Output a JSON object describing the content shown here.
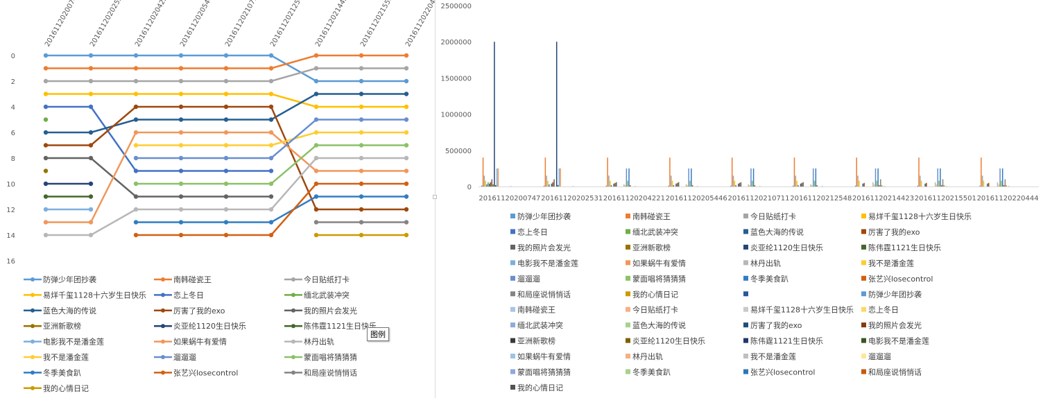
{
  "tooltip": "图例",
  "chart_data": [
    {
      "type": "line",
      "categories": [
        "20161120200747",
        "20161120202531",
        "20161120204221",
        "20161120205446",
        "20161120210711",
        "20161120212548",
        "20161120214423",
        "20161120215501",
        "20161120220444"
      ],
      "ylim": [
        16,
        0
      ],
      "y_ticks": [
        0,
        2,
        4,
        6,
        8,
        10,
        12,
        14,
        16
      ],
      "axis_orientation": "reversed",
      "legend_position": "bottom",
      "series": [
        {
          "name": "防弹少年团抄袭",
          "color": "#5b9bd5",
          "values": [
            0,
            0,
            0,
            0,
            0,
            0,
            2,
            2,
            2
          ]
        },
        {
          "name": "南韩碰瓷王",
          "color": "#ed7d31",
          "values": [
            1,
            1,
            1,
            1,
            1,
            1,
            0,
            0,
            0
          ]
        },
        {
          "name": "今日贴纸打卡",
          "color": "#a5a5a5",
          "values": [
            2,
            2,
            2,
            2,
            2,
            2,
            1,
            1,
            1
          ]
        },
        {
          "name": "易烊千玺1128十六岁生日快乐",
          "color": "#ffc000",
          "values": [
            3,
            3,
            3,
            3,
            3,
            3,
            4,
            4,
            4
          ]
        },
        {
          "name": "恋上冬日",
          "color": "#4472c4",
          "values": [
            4,
            4,
            9,
            9,
            9,
            9,
            null,
            null,
            null
          ]
        },
        {
          "name": "缅北武装冲突",
          "color": "#70ad47",
          "values": [
            5,
            null,
            null,
            null,
            null,
            null,
            null,
            null,
            null
          ]
        },
        {
          "name": "蓝色大海的传说",
          "color": "#255e91",
          "values": [
            6,
            6,
            5,
            5,
            5,
            5,
            3,
            3,
            3
          ]
        },
        {
          "name": "厉害了我的exo",
          "color": "#9e480e",
          "values": [
            7,
            7,
            4,
            4,
            4,
            4,
            12,
            12,
            12
          ]
        },
        {
          "name": "我的照片会发光",
          "color": "#636363",
          "values": [
            8,
            8,
            11,
            11,
            11,
            11,
            null,
            null,
            null
          ]
        },
        {
          "name": "亚洲新歌榜",
          "color": "#997300",
          "values": [
            9,
            null,
            null,
            null,
            null,
            null,
            null,
            null,
            null
          ]
        },
        {
          "name": "炎亚纶1120生日快乐",
          "color": "#264478",
          "values": [
            10,
            10,
            null,
            null,
            null,
            null,
            null,
            null,
            null
          ]
        },
        {
          "name": "陈伟霆1121生日快乐",
          "color": "#43682b",
          "values": [
            11,
            11,
            null,
            null,
            null,
            null,
            null,
            null,
            null
          ]
        },
        {
          "name": "电影我不是潘金莲",
          "color": "#7cafdd",
          "values": [
            12,
            12,
            null,
            null,
            null,
            null,
            null,
            null,
            null
          ]
        },
        {
          "name": "如果蜗牛有爱情",
          "color": "#f1975a",
          "values": [
            13,
            13,
            6,
            6,
            6,
            6,
            9,
            9,
            9
          ]
        },
        {
          "name": "林丹出轨",
          "color": "#b7b7b7",
          "values": [
            14,
            14,
            12,
            12,
            12,
            12,
            8,
            8,
            8
          ]
        },
        {
          "name": "我不是潘金莲",
          "color": "#ffcd33",
          "values": [
            null,
            null,
            7,
            7,
            7,
            7,
            6,
            6,
            6
          ]
        },
        {
          "name": "遛遛遛",
          "color": "#698ed0",
          "values": [
            null,
            null,
            8,
            8,
            8,
            8,
            5,
            5,
            5
          ]
        },
        {
          "name": "蒙面唱将猜猜猜",
          "color": "#8cc168",
          "values": [
            null,
            null,
            10,
            10,
            10,
            10,
            7,
            7,
            7
          ]
        },
        {
          "name": "冬季美食趴",
          "color": "#327dc2",
          "values": [
            null,
            null,
            13,
            13,
            13,
            13,
            11,
            11,
            11
          ]
        },
        {
          "name": "张艺兴losecontrol",
          "color": "#d26012",
          "values": [
            null,
            null,
            14,
            14,
            14,
            14,
            10,
            10,
            10
          ]
        },
        {
          "name": "和局座说悄悄话",
          "color": "#848484",
          "values": [
            null,
            null,
            null,
            null,
            null,
            null,
            13,
            13,
            13
          ]
        },
        {
          "name": "我的心情日记",
          "color": "#cc9a00",
          "values": [
            null,
            null,
            null,
            null,
            null,
            null,
            14,
            14,
            14
          ]
        }
      ]
    },
    {
      "type": "bar",
      "categories": [
        "20161120200747",
        "20161120202531",
        "20161120204221",
        "20161120205446",
        "20161120210711",
        "20161120212548",
        "20161120214423",
        "20161120215501",
        "20161120220444"
      ],
      "ylim": [
        0,
        2500000
      ],
      "y_ticks": [
        0,
        500000,
        1000000,
        1500000,
        2000000,
        2500000
      ],
      "legend_position": "bottom",
      "series": [
        {
          "name": "防弹少年团抄袭",
          "color": "#5b9bd5",
          "values": [
            15000,
            12000,
            12000,
            12000,
            12000,
            12000,
            12000,
            12000,
            12000
          ]
        },
        {
          "name": "南韩碰瓷王",
          "color": "#ed7d31",
          "values": [
            400000,
            400000,
            400000,
            400000,
            400000,
            400000,
            400000,
            400000,
            400000
          ]
        },
        {
          "name": "今日贴纸打卡",
          "color": "#a5a5a5",
          "values": [
            150000,
            150000,
            150000,
            150000,
            150000,
            150000,
            150000,
            150000,
            150000
          ]
        },
        {
          "name": "易烊千玺1128十六岁生日快乐",
          "color": "#ffc000",
          "values": [
            80000,
            80000,
            80000,
            80000,
            80000,
            80000,
            80000,
            80000,
            80000
          ]
        },
        {
          "name": "恋上冬日",
          "color": "#4472c4",
          "values": [
            30000,
            30000,
            20000,
            20000,
            20000,
            20000,
            0,
            0,
            0
          ]
        },
        {
          "name": "缅北武装冲突",
          "color": "#70ad47",
          "values": [
            60000,
            0,
            0,
            0,
            0,
            0,
            0,
            0,
            0
          ]
        },
        {
          "name": "蓝色大海的传说",
          "color": "#255e91",
          "values": [
            40000,
            40000,
            40000,
            40000,
            40000,
            40000,
            40000,
            40000,
            40000
          ]
        },
        {
          "name": "厉害了我的exo",
          "color": "#9e480e",
          "values": [
            60000,
            60000,
            50000,
            50000,
            50000,
            50000,
            50000,
            50000,
            50000
          ]
        },
        {
          "name": "我的照片会发光",
          "color": "#636363",
          "values": [
            100000,
            100000,
            60000,
            60000,
            60000,
            60000,
            0,
            0,
            0
          ]
        },
        {
          "name": "亚洲新歌榜",
          "color": "#997300",
          "values": [
            30000,
            0,
            0,
            0,
            0,
            0,
            0,
            0,
            0
          ]
        },
        {
          "name": "炎亚纶1120生日快乐",
          "color": "#264478",
          "values": [
            2000000,
            2000000,
            0,
            0,
            0,
            0,
            0,
            0,
            0
          ]
        },
        {
          "name": "陈伟霆1121生日快乐",
          "color": "#43682b",
          "values": [
            20000,
            20000,
            0,
            0,
            0,
            0,
            0,
            0,
            0
          ]
        },
        {
          "name": "电影我不是潘金莲",
          "color": "#7cafdd",
          "values": [
            250000,
            250000,
            0,
            0,
            0,
            0,
            0,
            0,
            0
          ]
        },
        {
          "name": "如果蜗牛有爱情",
          "color": "#f1975a",
          "values": [
            250000,
            250000,
            0,
            0,
            0,
            0,
            0,
            0,
            0
          ]
        },
        {
          "name": "林丹出轨",
          "color": "#b7b7b7",
          "values": [
            0,
            0,
            30000,
            30000,
            30000,
            30000,
            60000,
            60000,
            60000
          ]
        },
        {
          "name": "我不是潘金莲",
          "color": "#ffcd33",
          "values": [
            0,
            0,
            20000,
            20000,
            20000,
            20000,
            30000,
            30000,
            30000
          ]
        },
        {
          "name": "遛遛遛",
          "color": "#698ed0",
          "values": [
            0,
            0,
            250000,
            250000,
            250000,
            250000,
            250000,
            250000,
            250000
          ]
        },
        {
          "name": "蒙面唱将猜猜猜",
          "color": "#8cc168",
          "values": [
            0,
            0,
            80000,
            80000,
            80000,
            80000,
            80000,
            80000,
            80000
          ]
        },
        {
          "name": "冬季美食趴",
          "color": "#327dc2",
          "values": [
            0,
            0,
            250000,
            250000,
            250000,
            250000,
            250000,
            250000,
            250000
          ]
        },
        {
          "name": "张艺兴losecontrol",
          "color": "#d26012",
          "values": [
            0,
            0,
            20000,
            20000,
            20000,
            20000,
            20000,
            20000,
            20000
          ]
        },
        {
          "name": "和局座说悄悄话",
          "color": "#848484",
          "values": [
            0,
            0,
            0,
            0,
            0,
            0,
            100000,
            100000,
            100000
          ]
        },
        {
          "name": "我的心情日记",
          "color": "#cc9a00",
          "values": [
            0,
            0,
            0,
            0,
            0,
            0,
            20000,
            20000,
            20000
          ]
        },
        {
          "name": "",
          "color": "#2e5597",
          "values": [
            0,
            0,
            0,
            0,
            0,
            0,
            0,
            0,
            0
          ]
        },
        {
          "name": "防弹少年团抄袭",
          "color": "#5b9bd5",
          "values": [
            5000,
            5000,
            5000,
            5000,
            5000,
            5000,
            5000,
            5000,
            5000
          ]
        },
        {
          "name": "南韩碰瓷王",
          "color": "#a9c4e8",
          "values": [
            0,
            0,
            0,
            0,
            0,
            0,
            0,
            0,
            0
          ]
        },
        {
          "name": "今日贴纸打卡",
          "color": "#f4b183",
          "values": [
            0,
            0,
            0,
            0,
            0,
            0,
            0,
            0,
            0
          ]
        },
        {
          "name": "易烊千玺1128十六岁生日快乐",
          "color": "#c9c9c9",
          "values": [
            0,
            0,
            0,
            0,
            0,
            0,
            0,
            0,
            0
          ]
        },
        {
          "name": "恋上冬日",
          "color": "#ffd966",
          "values": [
            0,
            0,
            0,
            0,
            0,
            0,
            0,
            0,
            0
          ]
        },
        {
          "name": "缅北武装冲突",
          "color": "#8faadc",
          "values": [
            0,
            0,
            0,
            0,
            0,
            0,
            0,
            0,
            0
          ]
        },
        {
          "name": "蓝色大海的传说",
          "color": "#a9d18e",
          "values": [
            0,
            0,
            0,
            0,
            0,
            0,
            0,
            0,
            0
          ]
        },
        {
          "name": "厉害了我的exo",
          "color": "#1f4e79",
          "values": [
            0,
            0,
            0,
            0,
            0,
            0,
            0,
            0,
            0
          ]
        },
        {
          "name": "我的照片会发光",
          "color": "#843c0c",
          "values": [
            0,
            0,
            0,
            0,
            0,
            0,
            0,
            0,
            0
          ]
        },
        {
          "name": "亚洲新歌榜",
          "color": "#3a3a3a",
          "values": [
            0,
            0,
            0,
            0,
            0,
            0,
            0,
            0,
            0
          ]
        },
        {
          "name": "炎亚纶1120生日快乐",
          "color": "#7f6000",
          "values": [
            0,
            0,
            0,
            0,
            0,
            0,
            0,
            0,
            0
          ]
        },
        {
          "name": "陈伟霆1121生日快乐",
          "color": "#203864",
          "values": [
            0,
            0,
            0,
            0,
            0,
            0,
            0,
            0,
            0
          ]
        },
        {
          "name": "电影我不是潘金莲",
          "color": "#385723",
          "values": [
            0,
            0,
            0,
            0,
            0,
            0,
            0,
            0,
            0
          ]
        },
        {
          "name": "如果蜗牛有爱情",
          "color": "#9dc3e6",
          "values": [
            0,
            0,
            0,
            0,
            0,
            0,
            0,
            0,
            0
          ]
        },
        {
          "name": "林丹出轨",
          "color": "#f4b084",
          "values": [
            0,
            0,
            0,
            0,
            0,
            0,
            0,
            0,
            0
          ]
        },
        {
          "name": "我不是潘金莲",
          "color": "#bfbfbf",
          "values": [
            0,
            0,
            0,
            0,
            0,
            0,
            0,
            0,
            0
          ]
        },
        {
          "name": "遛遛遛",
          "color": "#ffe699",
          "values": [
            0,
            0,
            0,
            0,
            0,
            0,
            0,
            0,
            0
          ]
        },
        {
          "name": "蒙面唱将猜猜猜",
          "color": "#8ea9db",
          "values": [
            0,
            0,
            0,
            0,
            0,
            0,
            0,
            0,
            0
          ]
        },
        {
          "name": "冬季美食趴",
          "color": "#a9d08e",
          "values": [
            0,
            0,
            0,
            0,
            0,
            0,
            0,
            0,
            0
          ]
        },
        {
          "name": "张艺兴losecontrol",
          "color": "#2f75b5",
          "values": [
            0,
            0,
            0,
            0,
            0,
            0,
            0,
            0,
            0
          ]
        },
        {
          "name": "和局座说悄悄话",
          "color": "#c65911",
          "values": [
            0,
            0,
            0,
            0,
            0,
            0,
            0,
            0,
            0
          ]
        },
        {
          "name": "我的心情日记",
          "color": "#525252",
          "values": [
            0,
            0,
            0,
            0,
            0,
            0,
            0,
            0,
            0
          ]
        }
      ]
    }
  ]
}
